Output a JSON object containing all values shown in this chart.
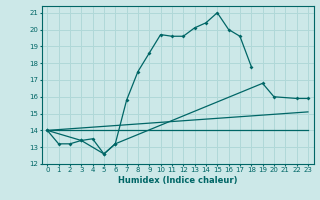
{
  "xlabel": "Humidex (Indice chaleur)",
  "bg_color": "#cce8e8",
  "grid_color": "#b0d8d8",
  "line_color": "#006666",
  "xlim": [
    -0.5,
    23.5
  ],
  "ylim": [
    12,
    21.4
  ],
  "xticks": [
    0,
    1,
    2,
    3,
    4,
    5,
    6,
    7,
    8,
    9,
    10,
    11,
    12,
    13,
    14,
    15,
    16,
    17,
    18,
    19,
    20,
    21,
    22,
    23
  ],
  "yticks": [
    12,
    13,
    14,
    15,
    16,
    17,
    18,
    19,
    20,
    21
  ],
  "curve1_x": [
    0,
    1,
    2,
    3,
    4,
    5,
    6,
    7,
    8,
    9,
    10,
    11,
    12,
    13,
    14,
    15,
    16,
    17,
    18
  ],
  "curve1_y": [
    14.0,
    13.2,
    13.2,
    13.4,
    13.5,
    12.6,
    13.2,
    15.8,
    17.5,
    18.6,
    19.7,
    19.6,
    19.6,
    20.1,
    20.4,
    21.0,
    20.0,
    19.6,
    17.8
  ],
  "curve2_x": [
    0,
    3,
    5,
    6,
    19,
    20,
    22,
    23
  ],
  "curve2_y": [
    14.0,
    13.4,
    12.6,
    13.2,
    16.8,
    16.0,
    15.9,
    15.9
  ],
  "curve3_x": [
    0,
    23
  ],
  "curve3_y": [
    14.0,
    15.1
  ],
  "curve4_x": [
    0,
    23
  ],
  "curve4_y": [
    14.0,
    14.0
  ]
}
